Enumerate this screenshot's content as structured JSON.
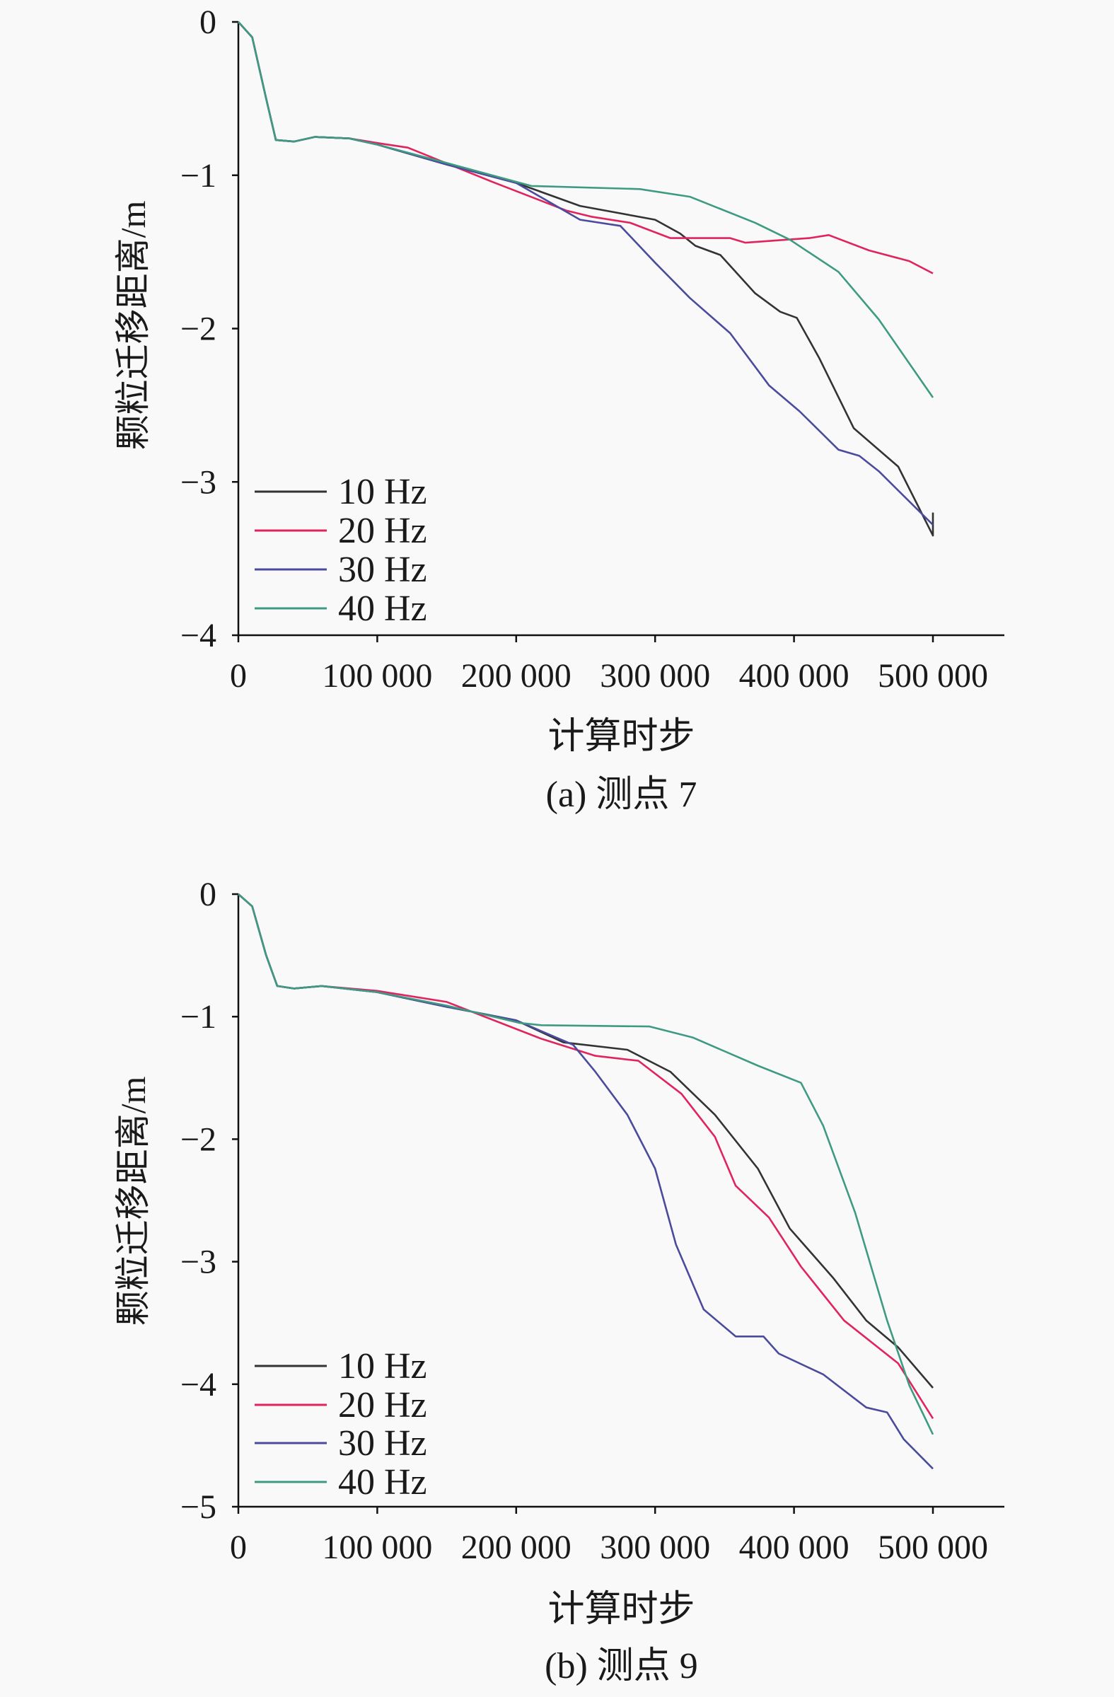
{
  "chart_data": [
    {
      "type": "line",
      "caption": "(a) 测点 7",
      "xlabel": "计算时步",
      "ylabel": "颗粒迁移距离/m",
      "xlim": [
        0,
        500000
      ],
      "ylim": [
        -4,
        0
      ],
      "xticks": [
        0,
        100000,
        200000,
        300000,
        400000,
        500000
      ],
      "xtick_labels": [
        "0",
        "100 000",
        "200 000",
        "300 000",
        "400 000",
        "500 000"
      ],
      "yticks": [
        0,
        -1,
        -2,
        -3,
        -4
      ],
      "ytick_labels": [
        "0",
        "−1",
        "−2",
        "−3",
        "−4"
      ],
      "legend_position": "bottom-left",
      "grid": false,
      "series": [
        {
          "name": "10 Hz",
          "color": "#333333",
          "x": [
            0,
            10000,
            20000,
            27000,
            40000,
            55000,
            80000,
            100000,
            150000,
            200000,
            246000,
            300000,
            318000,
            329000,
            347000,
            372000,
            390000,
            402000,
            418000,
            443000,
            475000,
            500000,
            500000
          ],
          "y": [
            0,
            -0.1,
            -0.5,
            -0.77,
            -0.78,
            -0.75,
            -0.76,
            -0.8,
            -0.93,
            -1.05,
            -1.2,
            -1.29,
            -1.38,
            -1.46,
            -1.52,
            -1.77,
            -1.89,
            -1.93,
            -2.19,
            -2.65,
            -2.9,
            -3.35,
            -3.2
          ]
        },
        {
          "name": "20 Hz",
          "color": "#e0245e",
          "x": [
            0,
            10000,
            20000,
            27000,
            40000,
            55000,
            80000,
            100000,
            122000,
            182000,
            236000,
            254000,
            282000,
            311000,
            354000,
            365000,
            411000,
            425000,
            454000,
            483000,
            500000
          ],
          "y": [
            0,
            -0.1,
            -0.5,
            -0.77,
            -0.78,
            -0.75,
            -0.76,
            -0.79,
            -0.82,
            -1.04,
            -1.23,
            -1.27,
            -1.31,
            -1.41,
            -1.41,
            -1.44,
            -1.41,
            -1.39,
            -1.49,
            -1.56,
            -1.64
          ]
        },
        {
          "name": "30 Hz",
          "color": "#4b4b9e",
          "x": [
            0,
            10000,
            20000,
            27000,
            40000,
            55000,
            80000,
            100000,
            150000,
            200000,
            246000,
            275000,
            300000,
            325000,
            354000,
            382000,
            404000,
            432000,
            447000,
            461000,
            500000
          ],
          "y": [
            0,
            -0.1,
            -0.5,
            -0.77,
            -0.78,
            -0.75,
            -0.76,
            -0.8,
            -0.93,
            -1.05,
            -1.29,
            -1.33,
            -1.57,
            -1.8,
            -2.03,
            -2.37,
            -2.54,
            -2.79,
            -2.83,
            -2.93,
            -3.28
          ]
        },
        {
          "name": "40 Hz",
          "color": "#3f9a82",
          "x": [
            0,
            10000,
            20000,
            27000,
            40000,
            55000,
            80000,
            100000,
            150000,
            211000,
            289000,
            325000,
            372000,
            397000,
            432000,
            461000,
            500000
          ],
          "y": [
            0,
            -0.1,
            -0.5,
            -0.77,
            -0.78,
            -0.75,
            -0.76,
            -0.8,
            -0.92,
            -1.07,
            -1.09,
            -1.14,
            -1.31,
            -1.42,
            -1.63,
            -1.94,
            -2.45
          ]
        }
      ]
    },
    {
      "type": "line",
      "caption": "(b) 测点 9",
      "xlabel": "计算时步",
      "ylabel": "颗粒迁移距离/m",
      "xlim": [
        0,
        500000
      ],
      "ylim": [
        -5,
        0
      ],
      "xticks": [
        0,
        100000,
        200000,
        300000,
        400000,
        500000
      ],
      "xtick_labels": [
        "0",
        "100 000",
        "200 000",
        "300 000",
        "400 000",
        "500 000"
      ],
      "yticks": [
        0,
        -1,
        -2,
        -3,
        -4,
        -5
      ],
      "ytick_labels": [
        "0",
        "−1",
        "−2",
        "−3",
        "−4",
        "−5"
      ],
      "legend_position": "bottom-left",
      "grid": false,
      "series": [
        {
          "name": "10 Hz",
          "color": "#333333",
          "x": [
            0,
            10000,
            20000,
            28000,
            40000,
            60000,
            100000,
            150000,
            200000,
            234000,
            280000,
            311000,
            343000,
            374000,
            397000,
            428000,
            452000,
            475000,
            500000
          ],
          "y": [
            0,
            -0.1,
            -0.5,
            -0.75,
            -0.77,
            -0.75,
            -0.8,
            -0.92,
            -1.03,
            -1.21,
            -1.27,
            -1.45,
            -1.8,
            -2.24,
            -2.73,
            -3.13,
            -3.48,
            -3.7,
            -4.03
          ]
        },
        {
          "name": "20 Hz",
          "color": "#e0245e",
          "x": [
            0,
            10000,
            20000,
            28000,
            40000,
            60000,
            100000,
            150000,
            218000,
            257000,
            288000,
            319000,
            343000,
            358000,
            382000,
            405000,
            436000,
            475000,
            500000
          ],
          "y": [
            0,
            -0.1,
            -0.5,
            -0.75,
            -0.77,
            -0.75,
            -0.79,
            -0.88,
            -1.18,
            -1.32,
            -1.36,
            -1.63,
            -1.98,
            -2.38,
            -2.64,
            -3.04,
            -3.48,
            -3.83,
            -4.28
          ]
        },
        {
          "name": "30 Hz",
          "color": "#4b4b9e",
          "x": [
            0,
            10000,
            20000,
            28000,
            40000,
            60000,
            100000,
            150000,
            200000,
            241000,
            257000,
            280000,
            300000,
            315000,
            335000,
            358000,
            378000,
            389000,
            421000,
            452000,
            467000,
            479000,
            500000
          ],
          "y": [
            0,
            -0.1,
            -0.5,
            -0.75,
            -0.77,
            -0.75,
            -0.8,
            -0.92,
            -1.03,
            -1.23,
            -1.45,
            -1.8,
            -2.24,
            -2.86,
            -3.39,
            -3.61,
            -3.61,
            -3.75,
            -3.92,
            -4.19,
            -4.23,
            -4.45,
            -4.69
          ]
        },
        {
          "name": "40 Hz",
          "color": "#3f9a82",
          "x": [
            0,
            10000,
            20000,
            28000,
            40000,
            60000,
            100000,
            150000,
            202000,
            218000,
            296000,
            327000,
            374000,
            405000,
            421000,
            444000,
            467000,
            483000,
            500000
          ],
          "y": [
            0,
            -0.1,
            -0.5,
            -0.75,
            -0.77,
            -0.75,
            -0.8,
            -0.91,
            -1.05,
            -1.07,
            -1.08,
            -1.17,
            -1.4,
            -1.54,
            -1.89,
            -2.6,
            -3.48,
            -4.01,
            -4.41
          ]
        }
      ]
    }
  ]
}
